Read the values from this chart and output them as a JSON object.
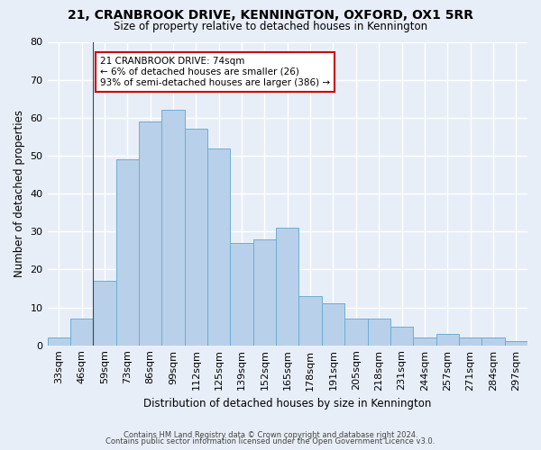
{
  "title_line1": "21, CRANBROOK DRIVE, KENNINGTON, OXFORD, OX1 5RR",
  "title_line2": "Size of property relative to detached houses in Kennington",
  "xlabel": "Distribution of detached houses by size in Kennington",
  "ylabel": "Number of detached properties",
  "bar_labels": [
    "33sqm",
    "46sqm",
    "59sqm",
    "73sqm",
    "86sqm",
    "99sqm",
    "112sqm",
    "125sqm",
    "139sqm",
    "152sqm",
    "165sqm",
    "178sqm",
    "191sqm",
    "205sqm",
    "218sqm",
    "231sqm",
    "244sqm",
    "257sqm",
    "271sqm",
    "284sqm",
    "297sqm"
  ],
  "bar_values": [
    2,
    7,
    17,
    49,
    59,
    62,
    57,
    52,
    27,
    28,
    31,
    13,
    11,
    7,
    7,
    5,
    2,
    3,
    2,
    2,
    1
  ],
  "bar_color": "#b8d0ea",
  "bar_edge_color": "#6baed6",
  "bg_color": "#e8eef8",
  "plot_bg_color": "#e8eef8",
  "grid_color": "#ffffff",
  "annotation_text_line1": "21 CRANBROOK DRIVE: 74sqm",
  "annotation_text_line2": "← 6% of detached houses are smaller (26)",
  "annotation_text_line3": "93% of semi-detached houses are larger (386) →",
  "annotation_box_facecolor": "#ffffff",
  "annotation_box_edgecolor": "#cc0000",
  "vline_x": 1.5,
  "ylim": [
    0,
    80
  ],
  "yticks": [
    0,
    10,
    20,
    30,
    40,
    50,
    60,
    70,
    80
  ],
  "footnote_line1": "Contains HM Land Registry data © Crown copyright and database right 2024.",
  "footnote_line2": "Contains public sector information licensed under the Open Government Licence v3.0."
}
